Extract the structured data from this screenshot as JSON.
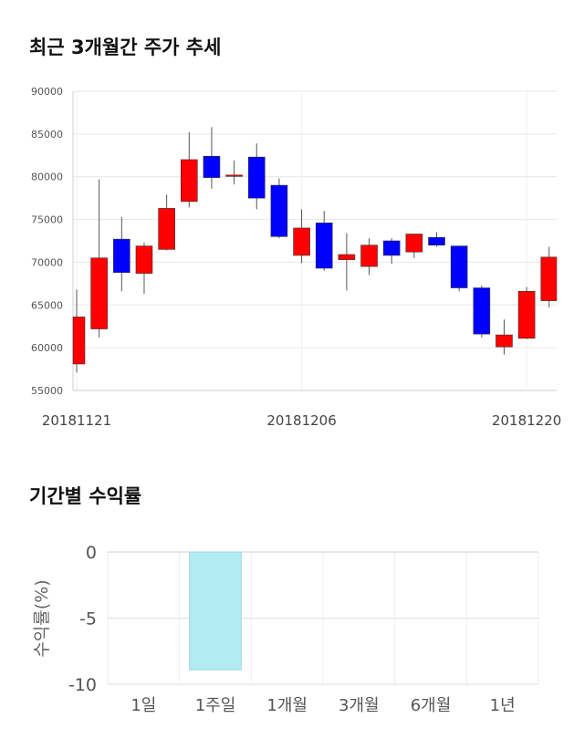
{
  "section1_title": "최근 3개월간 주가 추세",
  "section2_title": "기간별 수익률",
  "chart_data": [
    {
      "type": "candlestick",
      "title": "최근 3개월간 주가 추세",
      "ylim": [
        55000,
        90000
      ],
      "y_ticks": [
        "90000",
        "85000",
        "80000",
        "75000",
        "70000",
        "65000",
        "60000",
        "55000"
      ],
      "x_tick_labels": [
        {
          "label": "20181121",
          "index": 0
        },
        {
          "label": "20181206",
          "index": 10
        },
        {
          "label": "20181220",
          "index": 20
        }
      ],
      "colors": {
        "up": "#ff0000",
        "down": "#0000ff"
      },
      "grid": true,
      "candles": [
        {
          "open": 58100,
          "high": 66800,
          "low": 57100,
          "close": 63600
        },
        {
          "open": 62200,
          "high": 79700,
          "low": 61200,
          "close": 70500
        },
        {
          "open": 72700,
          "high": 75300,
          "low": 66600,
          "close": 68800
        },
        {
          "open": 68700,
          "high": 72300,
          "low": 66300,
          "close": 71900
        },
        {
          "open": 71500,
          "high": 77900,
          "low": 71400,
          "close": 76300
        },
        {
          "open": 77100,
          "high": 85200,
          "low": 76400,
          "close": 82000
        },
        {
          "open": 82400,
          "high": 85800,
          "low": 78600,
          "close": 79900
        },
        {
          "open": 80100,
          "high": 81900,
          "low": 79100,
          "close": 80200
        },
        {
          "open": 82300,
          "high": 83900,
          "low": 76200,
          "close": 77500
        },
        {
          "open": 79000,
          "high": 79800,
          "low": 72800,
          "close": 73000
        },
        {
          "open": 70800,
          "high": 76200,
          "low": 69900,
          "close": 74000
        },
        {
          "open": 74600,
          "high": 76000,
          "low": 69000,
          "close": 69300
        },
        {
          "open": 70300,
          "high": 73400,
          "low": 66700,
          "close": 70900
        },
        {
          "open": 69500,
          "high": 72800,
          "low": 68500,
          "close": 72000
        },
        {
          "open": 72500,
          "high": 72800,
          "low": 69800,
          "close": 70800
        },
        {
          "open": 71200,
          "high": 73300,
          "low": 70500,
          "close": 73300
        },
        {
          "open": 72900,
          "high": 73500,
          "low": 71800,
          "close": 72000
        },
        {
          "open": 71900,
          "high": 71900,
          "low": 66600,
          "close": 67000
        },
        {
          "open": 67000,
          "high": 67300,
          "low": 61200,
          "close": 61600
        },
        {
          "open": 60100,
          "high": 63300,
          "low": 59200,
          "close": 61500
        },
        {
          "open": 61100,
          "high": 67100,
          "low": 61000,
          "close": 66600
        },
        {
          "open": 65500,
          "high": 71800,
          "low": 64700,
          "close": 70600
        }
      ]
    },
    {
      "type": "bar",
      "title": "기간별 수익률",
      "ylabel": "수익률(%)",
      "ylim": [
        -10,
        0
      ],
      "y_ticks": [
        "0",
        "-5",
        "-10"
      ],
      "categories": [
        "1일",
        "1주일",
        "1개월",
        "3개월",
        "6개월",
        "1년"
      ],
      "values": [
        null,
        -8.9,
        null,
        null,
        null,
        null
      ],
      "bar_color": "#b3ebf2",
      "bar_edge": "#9fd6e4",
      "grid": true
    }
  ]
}
